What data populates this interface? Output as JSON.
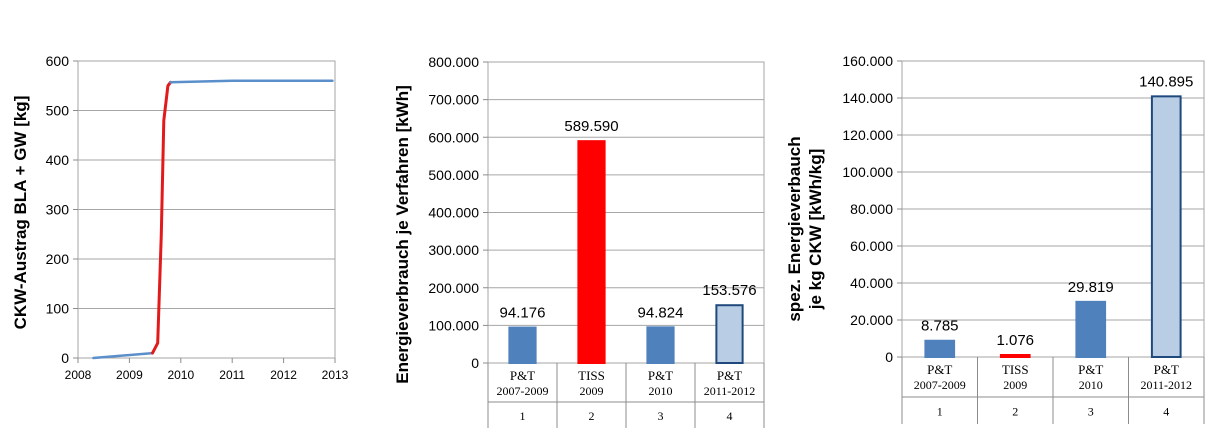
{
  "chart_data": [
    {
      "type": "line",
      "ylabel": "CKW-Austrag BLA + GW [kg]",
      "xlim": [
        2008,
        2013
      ],
      "ylim": [
        0,
        600
      ],
      "x_ticks": [
        "2008",
        "2009",
        "2010",
        "2011",
        "2012",
        "2013"
      ],
      "y_ticks": [
        "0",
        "100",
        "200",
        "300",
        "400",
        "500",
        "600"
      ],
      "grid": "horizontal",
      "series": [
        {
          "color": "#5b8fcb",
          "x": [
            2008.3,
            2009.45
          ],
          "y": [
            0,
            10
          ]
        },
        {
          "color": "#e31a1c",
          "x": [
            2009.45,
            2009.55,
            2009.62,
            2009.67,
            2009.75,
            2009.8
          ],
          "y": [
            10,
            30,
            250,
            480,
            550,
            557
          ]
        },
        {
          "color": "#5b8fcb",
          "x": [
            2009.8,
            2011.0,
            2012.95
          ],
          "y": [
            557,
            560,
            560
          ]
        }
      ]
    },
    {
      "type": "bar",
      "ylabel": "Energieverbrauch je Verfahren [kWh]",
      "ylim": [
        0,
        800000
      ],
      "y_ticks": [
        "0",
        "100.000",
        "200.000",
        "300.000",
        "400.000",
        "500.000",
        "600.000",
        "700.000",
        "800.000"
      ],
      "categories": [
        "P&T 2007-2009",
        "TISS 2009",
        "P&T 2010",
        "P&T 2011-2012"
      ],
      "category_lines": [
        [
          "P&T",
          "2007-2009"
        ],
        [
          "TISS",
          "2009"
        ],
        [
          "P&T",
          "2010"
        ],
        [
          "P&T",
          "2011-2012"
        ]
      ],
      "category_index": [
        "1",
        "2",
        "3",
        "4"
      ],
      "values": [
        94176,
        589590,
        94824,
        153576
      ],
      "value_labels": [
        "94.176",
        "589.590",
        "94.824",
        "153.576"
      ],
      "bar_colors": [
        "#4f81bd",
        "#ff0000",
        "#4f81bd",
        "#b9cde5"
      ],
      "bar_borders": [
        "#4f81bd",
        "#ff0000",
        "#4f81bd",
        "#1f497d"
      ],
      "grid": "horizontal"
    },
    {
      "type": "bar",
      "ylabel_lines": [
        "spez. Energieverbauch",
        "je kg CKW [kWh/kg]"
      ],
      "ylim": [
        0,
        160000
      ],
      "y_ticks": [
        "0",
        "20.000",
        "40.000",
        "60.000",
        "80.000",
        "100.000",
        "120.000",
        "140.000",
        "160.000"
      ],
      "categories": [
        "P&T 2007-2009",
        "TISS 2009",
        "P&T 2010",
        "P&T 2011-2012"
      ],
      "category_lines": [
        [
          "P&T",
          "2007-2009"
        ],
        [
          "TISS",
          "2009"
        ],
        [
          "P&T",
          "2010"
        ],
        [
          "P&T",
          "2011-2012"
        ]
      ],
      "category_index": [
        "1",
        "2",
        "3",
        "4"
      ],
      "values": [
        8785,
        1076,
        29819,
        140895
      ],
      "value_labels": [
        "8.785",
        "1.076",
        "29.819",
        "140.895"
      ],
      "bar_colors": [
        "#4f81bd",
        "#ff0000",
        "#4f81bd",
        "#b9cde5"
      ],
      "bar_borders": [
        "#4f81bd",
        "#ff0000",
        "#4f81bd",
        "#1f497d"
      ],
      "grid": "horizontal"
    }
  ]
}
